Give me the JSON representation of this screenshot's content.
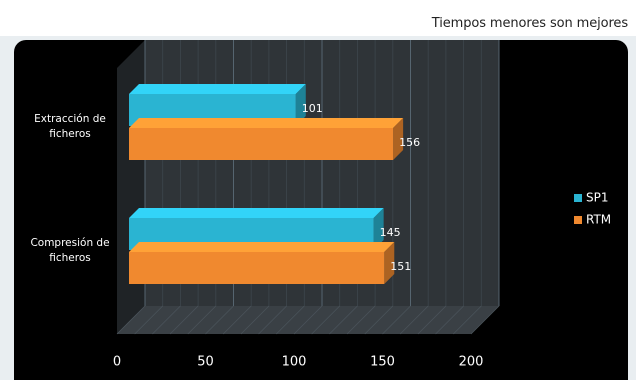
{
  "caption": "Tiempos menores son mejores",
  "colors": {
    "sp1": "#2ab4d2",
    "rtm": "#f0892f",
    "background": "#000000",
    "wall": "#2f3438"
  },
  "chart_data": {
    "type": "bar",
    "orientation": "horizontal",
    "three_d": true,
    "categories": [
      "Extracción de ficheros",
      "Compresión de ficheros"
    ],
    "category_lines": [
      [
        "Extracción de",
        "ficheros"
      ],
      [
        "Compresión de",
        "ficheros"
      ]
    ],
    "series": [
      {
        "name": "SP1",
        "values": [
          101,
          145
        ]
      },
      {
        "name": "RTM",
        "values": [
          156,
          151
        ]
      }
    ],
    "x_ticks": [
      0,
      50,
      100,
      150,
      200
    ],
    "xlim": [
      0,
      200
    ],
    "grid": true,
    "legend_position": "right",
    "data_labels": true
  }
}
